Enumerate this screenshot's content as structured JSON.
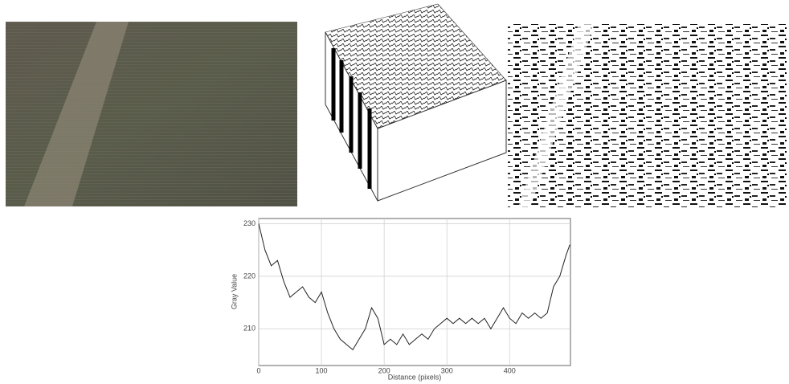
{
  "chart_data": {
    "type": "line",
    "x_label": "Distance (pixels)",
    "y_label": "Gray Value",
    "x": [
      0,
      10,
      20,
      30,
      40,
      50,
      60,
      70,
      80,
      90,
      100,
      110,
      120,
      130,
      140,
      150,
      160,
      170,
      180,
      190,
      200,
      210,
      220,
      230,
      240,
      250,
      260,
      270,
      280,
      290,
      300,
      310,
      320,
      330,
      340,
      350,
      360,
      370,
      380,
      390,
      400,
      410,
      420,
      430,
      440,
      450,
      460,
      470,
      480,
      490,
      496
    ],
    "values": [
      230,
      225,
      222,
      223,
      219,
      216,
      217,
      218,
      216,
      215,
      217,
      213,
      210,
      208,
      207,
      206,
      208,
      210,
      214,
      212,
      207,
      208,
      207,
      209,
      207,
      208,
      209,
      208,
      210,
      211,
      212,
      211,
      212,
      211,
      212,
      211,
      212,
      210,
      212,
      214,
      212,
      211,
      213,
      212,
      213,
      212,
      213,
      218,
      220,
      224,
      226
    ],
    "color": "#222222",
    "xlim": [
      0,
      497
    ],
    "xticks": [
      0,
      100,
      200,
      300,
      400
    ],
    "ylim": [
      203,
      231
    ],
    "yticks": [
      210,
      220,
      230
    ],
    "grid": true
  }
}
